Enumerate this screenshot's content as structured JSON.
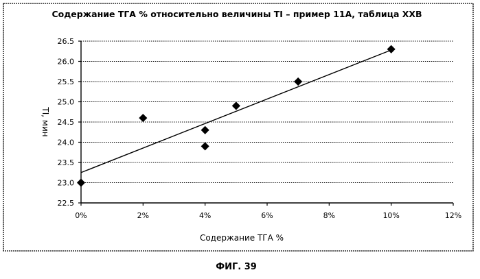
{
  "caption": "ФИГ. 39",
  "chart_data": {
    "type": "scatter",
    "title": "Содержание ТГА % относительно величины TI – пример 11А, таблица XXB",
    "xlabel": "Содержание ТГА %",
    "ylabel": "TI, мин",
    "xlim": [
      0,
      12
    ],
    "ylim": [
      22.5,
      26.5
    ],
    "x_ticks": [
      0,
      2,
      4,
      6,
      8,
      10,
      12
    ],
    "x_tick_labels": [
      "0%",
      "2%",
      "4%",
      "6%",
      "8%",
      "10%",
      "12%"
    ],
    "y_ticks": [
      22.5,
      23.0,
      23.5,
      24.0,
      24.5,
      25.0,
      25.5,
      26.0,
      26.5
    ],
    "y_tick_labels": [
      "22.5",
      "23.0",
      "23.5",
      "24.0",
      "24.5",
      "25.0",
      "25.5",
      "26.0",
      "26.5"
    ],
    "grid": {
      "horizontal": true,
      "vertical": false,
      "style": "dotted"
    },
    "marker": "diamond",
    "points": [
      {
        "x": 0,
        "y": 23.0
      },
      {
        "x": 2,
        "y": 24.6
      },
      {
        "x": 4,
        "y": 24.3
      },
      {
        "x": 4,
        "y": 23.9
      },
      {
        "x": 5,
        "y": 24.9
      },
      {
        "x": 7,
        "y": 25.5
      },
      {
        "x": 10,
        "y": 26.3
      }
    ],
    "trendline": {
      "type": "linear",
      "x": [
        0,
        10
      ],
      "y": [
        23.25,
        26.28
      ]
    }
  }
}
